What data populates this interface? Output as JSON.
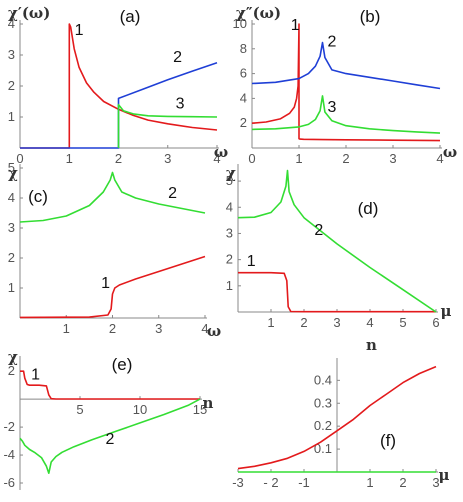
{
  "chart_data": [
    {
      "type": "line",
      "panel_label": "(a)",
      "ylabel": "χ′(ω)",
      "xlabel": "ω",
      "xlim": [
        0,
        4
      ],
      "ylim": [
        0,
        4
      ],
      "xticks": [
        0,
        1,
        2,
        3,
        4
      ],
      "yticks": [
        1,
        2,
        3,
        4
      ],
      "series": [
        {
          "name": "1",
          "color": "#e31a1c",
          "x": [
            0,
            0.999,
            1.0,
            1.0,
            1.03,
            1.06,
            1.1,
            1.2,
            1.35,
            1.5,
            1.7,
            2.0,
            2.3,
            2.6,
            3.0,
            3.5,
            4.0
          ],
          "y": [
            0,
            0,
            0,
            4,
            3.9,
            3.6,
            3.2,
            2.6,
            2.1,
            1.8,
            1.5,
            1.25,
            1.05,
            0.9,
            0.78,
            0.66,
            0.58
          ]
        },
        {
          "name": "2",
          "color": "#1f3fd6",
          "x": [
            0,
            1.999,
            2.0,
            2.0,
            2.5,
            3.0,
            3.5,
            4.0
          ],
          "y": [
            0,
            0,
            0,
            1.6,
            1.9,
            2.2,
            2.48,
            2.75
          ]
        },
        {
          "name": "3",
          "color": "#33dd33",
          "x": [
            2.0,
            2.0,
            2.1,
            2.3,
            2.6,
            3.0,
            3.5,
            4.0
          ],
          "y": [
            0.0,
            1.4,
            1.2,
            1.1,
            1.04,
            1.02,
            1.01,
            1.0
          ]
        }
      ],
      "curve_labels": [
        {
          "text": "1",
          "x": 1.2,
          "y": 3.65
        },
        {
          "text": "2",
          "x": 3.2,
          "y": 2.78
        },
        {
          "text": "3",
          "x": 3.25,
          "y": 1.27
        }
      ]
    },
    {
      "type": "line",
      "panel_label": "(b)",
      "ylabel": "χ″(ω)",
      "xlabel": "ω",
      "xlim": [
        0,
        4
      ],
      "ylim": [
        0,
        10
      ],
      "xticks": [
        0,
        1,
        2,
        3,
        4
      ],
      "yticks": [
        2,
        4,
        6,
        8,
        10
      ],
      "series": [
        {
          "name": "1",
          "color": "#e31a1c",
          "x": [
            0,
            0.3,
            0.6,
            0.8,
            0.9,
            0.95,
            0.98,
            1.0,
            1.0,
            1.02,
            1.1,
            1.5,
            2.0,
            3.0,
            4.0
          ],
          "y": [
            2.0,
            2.1,
            2.35,
            2.8,
            3.3,
            4.0,
            5.0,
            10.0,
            0.75,
            0.72,
            0.7,
            0.68,
            0.66,
            0.63,
            0.6
          ]
        },
        {
          "name": "2",
          "color": "#1f3fd6",
          "x": [
            0,
            0.5,
            1.0,
            1.2,
            1.35,
            1.45,
            1.5,
            1.55,
            1.7,
            2.0,
            2.5,
            3.0,
            3.5,
            4.0
          ],
          "y": [
            5.2,
            5.3,
            5.6,
            6.0,
            6.6,
            7.4,
            8.5,
            7.3,
            6.3,
            6.0,
            5.7,
            5.4,
            5.1,
            4.8
          ]
        },
        {
          "name": "3",
          "color": "#33dd33",
          "x": [
            0,
            0.5,
            1.0,
            1.2,
            1.35,
            1.45,
            1.5,
            1.55,
            1.7,
            2.0,
            2.5,
            3.0,
            3.5,
            4.0
          ],
          "y": [
            1.5,
            1.55,
            1.7,
            1.9,
            2.3,
            3.0,
            4.2,
            2.9,
            2.2,
            1.8,
            1.55,
            1.4,
            1.3,
            1.2
          ]
        }
      ],
      "curve_labels": [
        {
          "text": "1",
          "x": 0.92,
          "y": 9.5
        },
        {
          "text": "2",
          "x": 1.7,
          "y": 8.2
        },
        {
          "text": "3",
          "x": 1.7,
          "y": 2.9
        }
      ]
    },
    {
      "type": "line",
      "panel_label": "(c)",
      "ylabel": "χ",
      "xlabel": "ω",
      "xlim": [
        0,
        4
      ],
      "ylim": [
        0,
        5
      ],
      "xticks": [
        1,
        2,
        3,
        4
      ],
      "yticks": [
        1,
        2,
        3,
        4,
        5
      ],
      "series": [
        {
          "name": "1",
          "color": "#e31a1c",
          "x": [
            0,
            1.5,
            1.9,
            1.97,
            2.0,
            2.05,
            2.15,
            2.5,
            3.0,
            3.5,
            4.0
          ],
          "y": [
            0.02,
            0.03,
            0.1,
            0.3,
            0.8,
            1.0,
            1.1,
            1.3,
            1.55,
            1.8,
            2.05
          ]
        },
        {
          "name": "2",
          "color": "#33dd33",
          "x": [
            0,
            0.5,
            1.0,
            1.5,
            1.8,
            1.95,
            2.0,
            2.05,
            2.2,
            2.5,
            3.0,
            3.5,
            4.0
          ],
          "y": [
            3.2,
            3.25,
            3.4,
            3.75,
            4.2,
            4.6,
            4.85,
            4.6,
            4.2,
            4.0,
            3.8,
            3.65,
            3.5
          ]
        }
      ],
      "curve_labels": [
        {
          "text": "1",
          "x": 1.85,
          "y": 1.0
        },
        {
          "text": "2",
          "x": 3.3,
          "y": 4.0
        }
      ]
    },
    {
      "type": "line",
      "panel_label": "(d)",
      "ylabel": "χ",
      "xlabel": "μ",
      "xlim": [
        0,
        6
      ],
      "ylim": [
        0,
        5.5
      ],
      "xticks": [
        1,
        2,
        3,
        4,
        5,
        6
      ],
      "yticks": [
        1,
        2,
        3,
        4,
        5
      ],
      "series": [
        {
          "name": "1",
          "color": "#e31a1c",
          "x": [
            0,
            1.0,
            1.4,
            1.48,
            1.52,
            1.6,
            2.0,
            3.0,
            4.0,
            5.0,
            6.0
          ],
          "y": [
            1.5,
            1.5,
            1.48,
            1.2,
            0.2,
            0.02,
            0.01,
            0.01,
            0.01,
            0.01,
            0.01
          ]
        },
        {
          "name": "2",
          "color": "#33dd33",
          "x": [
            0,
            0.5,
            1.0,
            1.3,
            1.45,
            1.5,
            1.55,
            1.7,
            2.0,
            3.0,
            4.0,
            5.0,
            6.0
          ],
          "y": [
            3.6,
            3.62,
            3.8,
            4.2,
            4.8,
            5.4,
            4.6,
            4.1,
            3.6,
            2.6,
            1.7,
            0.85,
            0.0
          ]
        }
      ],
      "curve_labels": [
        {
          "text": "1",
          "x": 0.4,
          "y": 1.75
        },
        {
          "text": "2",
          "x": 2.45,
          "y": 2.95
        }
      ]
    },
    {
      "type": "line",
      "panel_label": "(e)",
      "ylabel": "χ",
      "xlabel": "n",
      "xlim": [
        0,
        15
      ],
      "ylim": [
        -6.5,
        2.8
      ],
      "xticks": [
        5,
        10,
        15
      ],
      "yticks": [
        2,
        -2,
        -4,
        -6
      ],
      "series": [
        {
          "name": "1",
          "color": "#e31a1c",
          "x": [
            0,
            0.3,
            0.4,
            0.6,
            0.8,
            1.6,
            2.2,
            2.4,
            2.6,
            3.0,
            6.0,
            10.0,
            15.0
          ],
          "y": [
            2.0,
            2.0,
            1.5,
            1.05,
            1.0,
            1.0,
            0.95,
            0.3,
            0.03,
            0.01,
            0.01,
            0.01,
            0.01
          ]
        },
        {
          "name": "2",
          "color": "#33dd33",
          "x": [
            0,
            0.2,
            0.4,
            0.8,
            1.2,
            1.8,
            2.2,
            2.4,
            2.6,
            3.0,
            3.5,
            4.5,
            6.0,
            8.0,
            10.0,
            12.0,
            14.0,
            15.0
          ],
          "y": [
            -2.8,
            -3.0,
            -3.3,
            -3.6,
            -3.8,
            -4.2,
            -4.8,
            -5.3,
            -4.5,
            -4.1,
            -3.8,
            -3.4,
            -2.9,
            -2.3,
            -1.7,
            -1.1,
            -0.45,
            0.0
          ]
        }
      ],
      "curve_labels": [
        {
          "text": "1",
          "x": 1.3,
          "y": 1.4
        },
        {
          "text": "2",
          "x": 7.5,
          "y": -3.2
        }
      ]
    },
    {
      "type": "line",
      "panel_label": "(f)",
      "ylabel": "n",
      "xlabel": "μ",
      "xlim": [
        -3,
        3
      ],
      "ylim": [
        0,
        0.48
      ],
      "xticks": [
        -3,
        -2,
        -1,
        1,
        2,
        3
      ],
      "xtick_labels": [
        "-3",
        "- 2",
        "-1",
        "1",
        "2",
        "3"
      ],
      "yticks": [
        0.1,
        0.2,
        0.3,
        0.4
      ],
      "series": [
        {
          "name": "red",
          "color": "#e31a1c",
          "x": [
            -3,
            -2.5,
            -2,
            -1.5,
            -1,
            -0.5,
            0,
            0.5,
            1,
            1.5,
            2,
            2.5,
            3
          ],
          "y": [
            0.015,
            0.025,
            0.04,
            0.06,
            0.09,
            0.13,
            0.18,
            0.23,
            0.29,
            0.34,
            0.39,
            0.43,
            0.46
          ]
        },
        {
          "name": "green",
          "color": "#33dd33",
          "x": [
            -3,
            3
          ],
          "y": [
            0.0,
            0.0
          ]
        }
      ],
      "curve_labels": []
    }
  ]
}
